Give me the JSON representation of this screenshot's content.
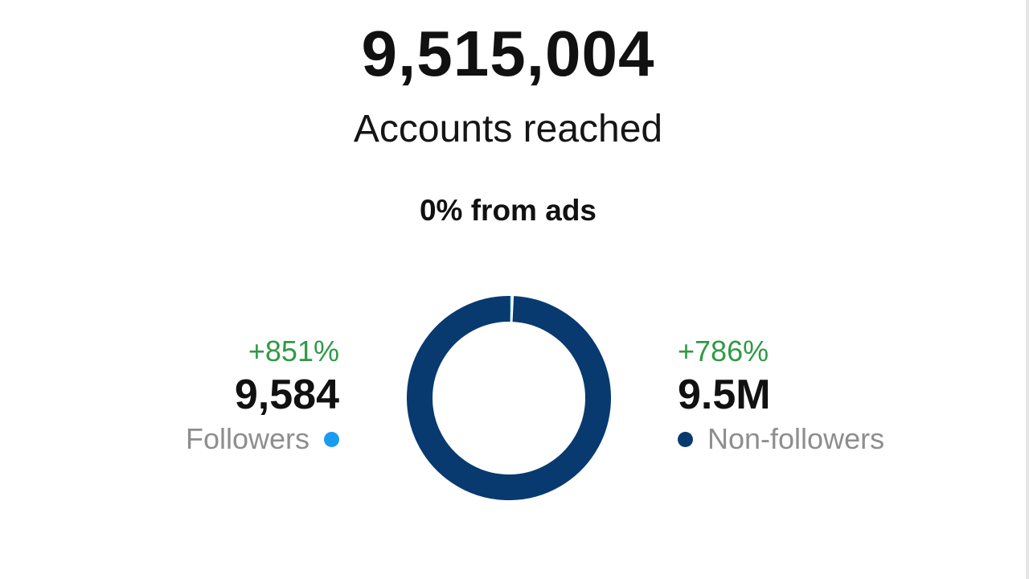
{
  "header": {
    "total_value": "9,515,004",
    "total_label": "Accounts reached",
    "ads_text": "0% from ads"
  },
  "followers": {
    "change": "+851%",
    "value": "9,584",
    "label": "Followers",
    "color": "#1a9bf0"
  },
  "non_followers": {
    "change": "+786%",
    "value": "9.5M",
    "label": "Non-followers",
    "color": "#083a70"
  },
  "chart_data": {
    "type": "pie",
    "donut": true,
    "categories": [
      "Followers",
      "Non-followers"
    ],
    "values": [
      9584,
      9505420
    ],
    "colors": [
      "#1a9bf0",
      "#083a70"
    ]
  }
}
